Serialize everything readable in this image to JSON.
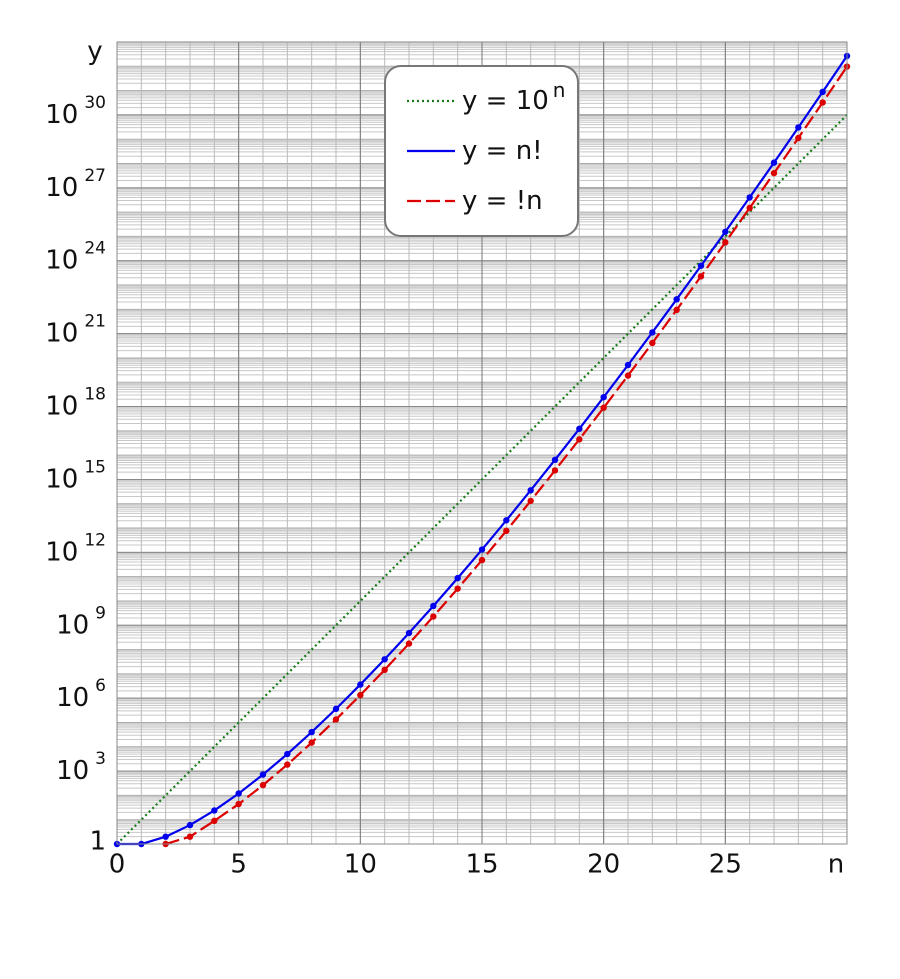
{
  "chart_data": {
    "type": "line",
    "x_label": "n",
    "y_label": "y",
    "x": [
      0,
      1,
      2,
      3,
      4,
      5,
      6,
      7,
      8,
      9,
      10,
      11,
      12,
      13,
      14,
      15,
      16,
      17,
      18,
      19,
      20,
      21,
      22,
      23,
      24,
      25,
      26,
      27,
      28,
      29,
      30
    ],
    "xlim": [
      0,
      30
    ],
    "xticks": [
      0,
      5,
      10,
      15,
      20,
      25
    ],
    "ylim": [
      1,
      1e+33
    ],
    "log_y": true,
    "grid": true,
    "legend": "top",
    "yticks": [
      1,
      {
        "value": 1000.0,
        "label": "10",
        "exponent": "3"
      },
      {
        "value": 1000000.0,
        "label": "10",
        "exponent": "6"
      },
      {
        "value": 1000000000.0,
        "label": "10",
        "exponent": "9"
      },
      {
        "value": 1000000000000.0,
        "label": "10",
        "exponent": "12"
      },
      {
        "value": 1000000000000000.0,
        "label": "10",
        "exponent": "15"
      },
      {
        "value": 1e+18,
        "label": "10",
        "exponent": "18"
      },
      {
        "value": 1e+21,
        "label": "10",
        "exponent": "21"
      },
      {
        "value": 1e+24,
        "label": "10",
        "exponent": "24"
      },
      {
        "value": 1e+27,
        "label": "10",
        "exponent": "27"
      },
      {
        "value": 1e+30,
        "label": "10",
        "exponent": "30"
      }
    ],
    "series": [
      {
        "name": "y = 10",
        "name_exponent": "n",
        "color": "#1a7a1a",
        "dash": "dotted",
        "markers": false,
        "values": [
          1,
          10.0,
          100.0,
          1000.0,
          10000.0,
          100000.0,
          1000000.0,
          10000000.0,
          100000000.0,
          1000000000.0,
          10000000000.0,
          100000000000.0,
          1000000000000.0,
          10000000000000.0,
          100000000000000.0,
          1000000000000000.0,
          1e+16,
          1e+17,
          1e+18,
          1e+19,
          1e+20,
          1e+21,
          1e+22,
          1e+23,
          1e+24,
          1e+25,
          1e+26,
          1e+27,
          1e+28,
          1e+29,
          1e+30
        ]
      },
      {
        "name": "y = n!",
        "color": "#0000ee",
        "dash": "solid",
        "markers": true,
        "values": [
          1,
          1,
          2,
          6,
          24,
          120,
          720,
          5040,
          40320,
          362880,
          3628800,
          39916800,
          479001600,
          6227020800,
          87178291200,
          1307674368000,
          20922789888000,
          355687428096000,
          6402373705728000,
          121645100408832000,
          2432902008176640000,
          5.109094217170944e+19,
          1.1240007277776077e+21,
          2.585201673888498e+22,
          6.204484017332394e+23,
          1.5511210043330986e+25,
          4.0329146112660565e+26,
          1.0888869450418352e+28,
          3.0488834461171384e+29,
          8.841761993739701e+30,
          2.6525285981219107e+32
        ]
      },
      {
        "name": "y = !n",
        "color": "#dd0000",
        "dash": "dashed",
        "markers": true,
        "values": [
          null,
          null,
          1,
          2,
          9,
          44,
          265,
          1854,
          14833,
          133496,
          1334961,
          14684570,
          176214841,
          2290792932,
          32071101049,
          481066515734,
          7697064251745,
          130850092279664,
          2355301661033953,
          44750731559645106,
          8.950146311929021e+17,
          1.8795307255050945e+19,
          4.134967596111208e+20,
          9.510425471055779e+21,
          2.282502113053387e+23,
          5.706255282633468e+24,
          1.4836263734847014e+26,
          4.005791208408694e+27,
          1.1216215383544343e+29,
          3.25270246122786e+30,
          9.758107383683579e+31
        ]
      }
    ]
  }
}
